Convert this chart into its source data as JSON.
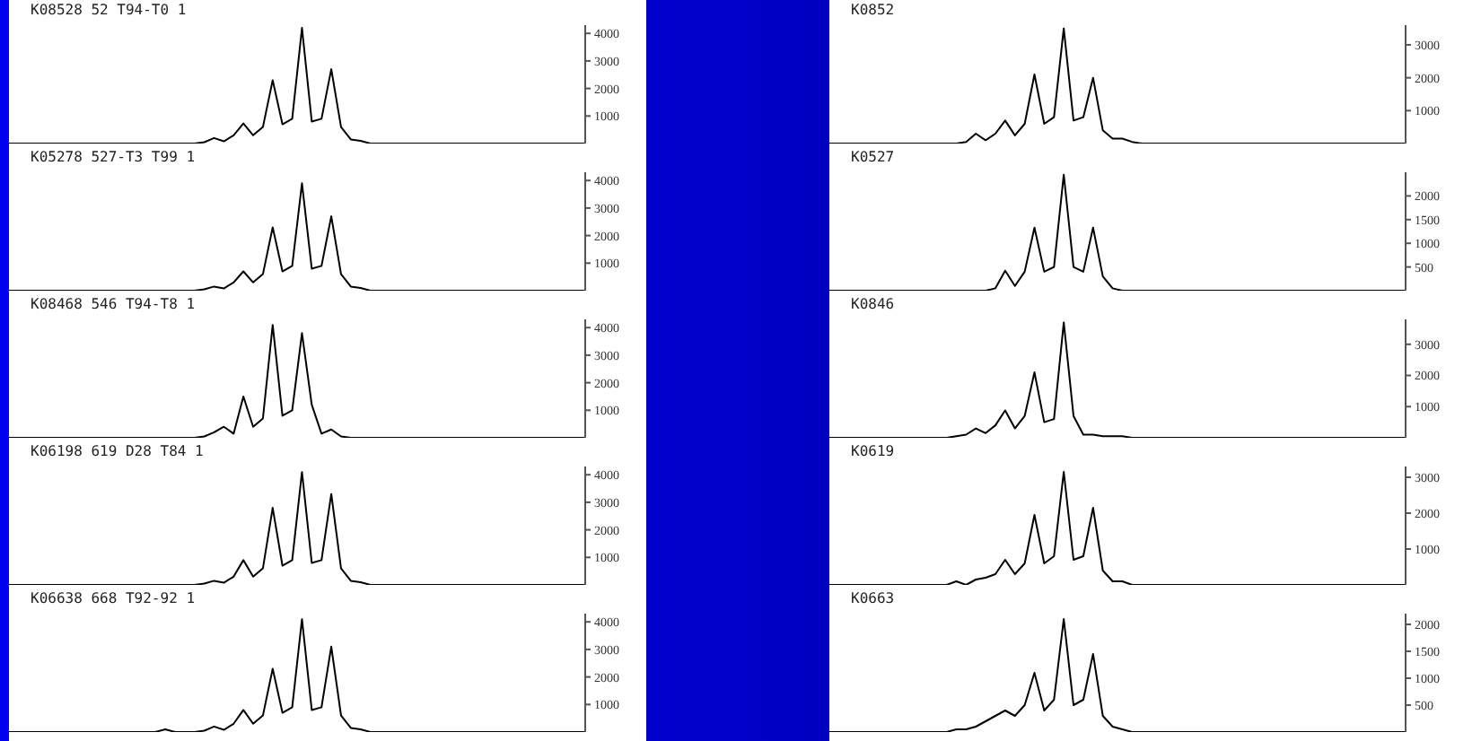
{
  "chart_data": [
    {
      "type": "line",
      "title": "K08528 52 T94-T0 1",
      "categories": [
        null,
        null,
        null,
        null,
        null,
        null,
        null,
        null,
        null,
        null,
        null,
        null,
        null,
        null,
        null,
        null,
        null,
        null,
        null,
        null,
        null,
        null,
        null,
        null,
        null,
        null,
        null,
        null,
        null,
        null,
        null,
        null,
        null,
        null,
        null,
        null,
        null,
        null,
        null,
        null,
        null,
        null,
        null,
        null,
        null,
        null,
        null,
        null,
        null,
        null,
        null,
        null,
        null,
        null,
        null,
        null,
        null,
        null,
        null,
        null
      ],
      "series": [
        {
          "color": "#000000",
          "values": [
            0,
            0,
            0,
            0,
            0,
            0,
            0,
            0,
            0,
            0,
            0,
            0,
            0,
            0,
            0,
            0,
            0,
            0,
            0,
            0,
            50,
            200,
            80,
            300,
            730,
            300,
            600,
            2300,
            700,
            900,
            4200,
            800,
            900,
            2700,
            600,
            150,
            100,
            0,
            0,
            0,
            0,
            0,
            0,
            0,
            0,
            0,
            0,
            0,
            0,
            0,
            0,
            0,
            0,
            0,
            0,
            0,
            0,
            0,
            0,
            0
          ]
        }
      ],
      "ylim": [
        0,
        4300
      ],
      "yticks": [
        1000,
        2000,
        3000,
        4000
      ],
      "tick_labels": "y",
      "grid": false,
      "legend": false,
      "marker": "none"
    },
    {
      "type": "line",
      "title": "K05278 527-T3 T99 1",
      "categories": [
        null,
        null,
        null,
        null,
        null,
        null,
        null,
        null,
        null,
        null,
        null,
        null,
        null,
        null,
        null,
        null,
        null,
        null,
        null,
        null,
        null,
        null,
        null,
        null,
        null,
        null,
        null,
        null,
        null,
        null,
        null,
        null,
        null,
        null,
        null,
        null,
        null,
        null,
        null,
        null,
        null,
        null,
        null,
        null,
        null,
        null,
        null,
        null,
        null,
        null,
        null,
        null,
        null,
        null,
        null,
        null,
        null,
        null,
        null,
        null
      ],
      "series": [
        {
          "color": "#000000",
          "values": [
            0,
            0,
            0,
            0,
            0,
            0,
            0,
            0,
            0,
            0,
            0,
            0,
            0,
            0,
            0,
            0,
            0,
            0,
            0,
            0,
            50,
            150,
            80,
            300,
            700,
            300,
            600,
            2300,
            700,
            900,
            3900,
            800,
            900,
            2700,
            600,
            150,
            100,
            0,
            0,
            0,
            0,
            0,
            0,
            0,
            0,
            0,
            0,
            0,
            0,
            0,
            0,
            0,
            0,
            0,
            0,
            0,
            0,
            0,
            0,
            0
          ]
        }
      ],
      "ylim": [
        0,
        4300
      ],
      "yticks": [
        1000,
        2000,
        3000,
        4000
      ],
      "tick_labels": "y",
      "grid": false,
      "legend": false,
      "marker": "none"
    },
    {
      "type": "line",
      "title": "K08468 546 T94-T8 1",
      "categories": [
        null,
        null,
        null,
        null,
        null,
        null,
        null,
        null,
        null,
        null,
        null,
        null,
        null,
        null,
        null,
        null,
        null,
        null,
        null,
        null,
        null,
        null,
        null,
        null,
        null,
        null,
        null,
        null,
        null,
        null,
        null,
        null,
        null,
        null,
        null,
        null,
        null,
        null,
        null,
        null,
        null,
        null,
        null,
        null,
        null,
        null,
        null,
        null,
        null,
        null,
        null,
        null,
        null,
        null,
        null,
        null,
        null,
        null,
        null,
        null
      ],
      "series": [
        {
          "color": "#000000",
          "values": [
            0,
            0,
            0,
            0,
            0,
            0,
            0,
            0,
            0,
            0,
            0,
            0,
            0,
            0,
            0,
            0,
            0,
            0,
            0,
            0,
            50,
            200,
            400,
            150,
            1500,
            400,
            700,
            4100,
            800,
            1000,
            3800,
            1200,
            150,
            300,
            50,
            0,
            0,
            0,
            0,
            0,
            0,
            0,
            0,
            0,
            0,
            0,
            0,
            0,
            0,
            0,
            0,
            0,
            0,
            0,
            0,
            0,
            0,
            0,
            0,
            0
          ]
        }
      ],
      "ylim": [
        0,
        4300
      ],
      "yticks": [
        1000,
        2000,
        3000,
        4000
      ],
      "tick_labels": "y",
      "grid": false,
      "legend": false,
      "marker": "none"
    },
    {
      "type": "line",
      "title": "K06198 619 D28 T84 1",
      "categories": [
        null,
        null,
        null,
        null,
        null,
        null,
        null,
        null,
        null,
        null,
        null,
        null,
        null,
        null,
        null,
        null,
        null,
        null,
        null,
        null,
        null,
        null,
        null,
        null,
        null,
        null,
        null,
        null,
        null,
        null,
        null,
        null,
        null,
        null,
        null,
        null,
        null,
        null,
        null,
        null,
        null,
        null,
        null,
        null,
        null,
        null,
        null,
        null,
        null,
        null,
        null,
        null,
        null,
        null,
        null,
        null,
        null,
        null,
        null,
        null
      ],
      "series": [
        {
          "color": "#000000",
          "values": [
            0,
            0,
            0,
            0,
            0,
            0,
            0,
            0,
            0,
            0,
            0,
            0,
            0,
            0,
            0,
            0,
            0,
            0,
            0,
            0,
            50,
            150,
            80,
            300,
            900,
            300,
            600,
            2800,
            700,
            900,
            4100,
            800,
            900,
            3300,
            600,
            150,
            100,
            0,
            0,
            0,
            0,
            0,
            0,
            0,
            0,
            0,
            0,
            0,
            0,
            0,
            0,
            0,
            0,
            0,
            0,
            0,
            0,
            0,
            0,
            0
          ]
        }
      ],
      "ylim": [
        0,
        4300
      ],
      "yticks": [
        1000,
        2000,
        3000,
        4000
      ],
      "tick_labels": "y",
      "grid": false,
      "legend": false,
      "marker": "none"
    },
    {
      "type": "line",
      "title": "K06638 668 T92-92 1",
      "categories": [
        null,
        null,
        null,
        null,
        null,
        null,
        null,
        null,
        null,
        null,
        null,
        null,
        null,
        null,
        null,
        null,
        null,
        null,
        null,
        null,
        null,
        null,
        null,
        null,
        null,
        null,
        null,
        null,
        null,
        null,
        null,
        null,
        null,
        null,
        null,
        null,
        null,
        null,
        null,
        null,
        null,
        null,
        null,
        null,
        null,
        null,
        null,
        null,
        null,
        null,
        null,
        null,
        null,
        null,
        null,
        null,
        null,
        null,
        null,
        null
      ],
      "series": [
        {
          "color": "#000000",
          "values": [
            0,
            0,
            0,
            0,
            0,
            0,
            0,
            0,
            0,
            0,
            0,
            0,
            0,
            0,
            0,
            0,
            100,
            0,
            0,
            0,
            50,
            200,
            80,
            300,
            800,
            300,
            600,
            2300,
            700,
            900,
            4100,
            800,
            900,
            3100,
            600,
            150,
            100,
            0,
            0,
            0,
            0,
            0,
            0,
            0,
            0,
            0,
            0,
            0,
            0,
            0,
            0,
            0,
            0,
            0,
            0,
            0,
            0,
            0,
            0,
            0
          ]
        }
      ],
      "ylim": [
        0,
        4300
      ],
      "yticks": [
        1000,
        2000,
        3000,
        4000
      ],
      "tick_labels": "y",
      "grid": false,
      "legend": false,
      "marker": "none"
    },
    {
      "type": "line",
      "title": "K0852",
      "categories": [
        null,
        null,
        null,
        null,
        null,
        null,
        null,
        null,
        null,
        null,
        null,
        null,
        null,
        null,
        null,
        null,
        null,
        null,
        null,
        null,
        null,
        null,
        null,
        null,
        null,
        null,
        null,
        null,
        null,
        null,
        null,
        null,
        null,
        null,
        null,
        null,
        null,
        null,
        null,
        null,
        null,
        null,
        null,
        null,
        null,
        null,
        null,
        null,
        null,
        null,
        null,
        null,
        null,
        null,
        null,
        null,
        null,
        null,
        null,
        null
      ],
      "series": [
        {
          "color": "#000000",
          "values": [
            0,
            0,
            0,
            0,
            0,
            0,
            0,
            0,
            0,
            0,
            0,
            0,
            0,
            0,
            50,
            300,
            100,
            300,
            700,
            250,
            600,
            2100,
            600,
            800,
            3500,
            700,
            800,
            2000,
            400,
            150,
            150,
            50,
            0,
            0,
            0,
            0,
            0,
            0,
            0,
            0,
            0,
            0,
            0,
            0,
            0,
            0,
            0,
            0,
            0,
            0,
            0,
            0,
            0,
            0,
            0,
            0,
            0,
            0,
            0,
            0
          ]
        }
      ],
      "ylim": [
        0,
        3600
      ],
      "yticks": [
        1000,
        2000,
        3000
      ],
      "tick_labels": "y",
      "grid": false,
      "legend": false,
      "marker": "none"
    },
    {
      "type": "line",
      "title": "K0527",
      "categories": [
        null,
        null,
        null,
        null,
        null,
        null,
        null,
        null,
        null,
        null,
        null,
        null,
        null,
        null,
        null,
        null,
        null,
        null,
        null,
        null,
        null,
        null,
        null,
        null,
        null,
        null,
        null,
        null,
        null,
        null,
        null,
        null,
        null,
        null,
        null,
        null,
        null,
        null,
        null,
        null,
        null,
        null,
        null,
        null,
        null,
        null,
        null,
        null,
        null,
        null,
        null,
        null,
        null,
        null,
        null,
        null,
        null,
        null,
        null,
        null
      ],
      "series": [
        {
          "color": "#000000",
          "values": [
            0,
            0,
            0,
            0,
            0,
            0,
            0,
            0,
            0,
            0,
            0,
            0,
            0,
            0,
            0,
            0,
            0,
            50,
            420,
            100,
            400,
            1330,
            400,
            500,
            2450,
            500,
            400,
            1330,
            300,
            50,
            0,
            0,
            0,
            0,
            0,
            0,
            0,
            0,
            0,
            0,
            0,
            0,
            0,
            0,
            0,
            0,
            0,
            0,
            0,
            0,
            0,
            0,
            0,
            0,
            0,
            0,
            0,
            0,
            0,
            0
          ]
        }
      ],
      "ylim": [
        0,
        2500
      ],
      "yticks": [
        500,
        1000,
        1500,
        2000
      ],
      "tick_labels": "y",
      "grid": false,
      "legend": false,
      "marker": "none"
    },
    {
      "type": "line",
      "title": "K0846",
      "categories": [
        null,
        null,
        null,
        null,
        null,
        null,
        null,
        null,
        null,
        null,
        null,
        null,
        null,
        null,
        null,
        null,
        null,
        null,
        null,
        null,
        null,
        null,
        null,
        null,
        null,
        null,
        null,
        null,
        null,
        null,
        null,
        null,
        null,
        null,
        null,
        null,
        null,
        null,
        null,
        null,
        null,
        null,
        null,
        null,
        null,
        null,
        null,
        null,
        null,
        null,
        null,
        null,
        null,
        null,
        null,
        null,
        null,
        null,
        null,
        null
      ],
      "series": [
        {
          "color": "#000000",
          "values": [
            0,
            0,
            0,
            0,
            0,
            0,
            0,
            0,
            0,
            0,
            0,
            0,
            0,
            50,
            100,
            300,
            150,
            400,
            880,
            300,
            700,
            2100,
            500,
            600,
            3700,
            700,
            100,
            100,
            50,
            50,
            50,
            0,
            0,
            0,
            0,
            0,
            0,
            0,
            0,
            0,
            0,
            0,
            0,
            0,
            0,
            0,
            0,
            0,
            0,
            0,
            0,
            0,
            0,
            0,
            0,
            0,
            0,
            0,
            0,
            0
          ]
        }
      ],
      "ylim": [
        0,
        3800
      ],
      "yticks": [
        1000,
        2000,
        3000
      ],
      "tick_labels": "y",
      "grid": false,
      "legend": false,
      "marker": "none"
    },
    {
      "type": "line",
      "title": "K0619",
      "categories": [
        null,
        null,
        null,
        null,
        null,
        null,
        null,
        null,
        null,
        null,
        null,
        null,
        null,
        null,
        null,
        null,
        null,
        null,
        null,
        null,
        null,
        null,
        null,
        null,
        null,
        null,
        null,
        null,
        null,
        null,
        null,
        null,
        null,
        null,
        null,
        null,
        null,
        null,
        null,
        null,
        null,
        null,
        null,
        null,
        null,
        null,
        null,
        null,
        null,
        null,
        null,
        null,
        null,
        null,
        null,
        null,
        null,
        null,
        null,
        null
      ],
      "series": [
        {
          "color": "#000000",
          "values": [
            0,
            0,
            0,
            0,
            0,
            0,
            0,
            0,
            0,
            0,
            0,
            0,
            0,
            100,
            0,
            150,
            200,
            300,
            700,
            300,
            600,
            1950,
            600,
            800,
            3150,
            700,
            800,
            2150,
            400,
            100,
            100,
            0,
            0,
            0,
            0,
            0,
            0,
            0,
            0,
            0,
            0,
            0,
            0,
            0,
            0,
            0,
            0,
            0,
            0,
            0,
            0,
            0,
            0,
            0,
            0,
            0,
            0,
            0,
            0,
            0
          ]
        }
      ],
      "ylim": [
        0,
        3300
      ],
      "yticks": [
        1000,
        2000,
        3000
      ],
      "tick_labels": "y",
      "grid": false,
      "legend": false,
      "marker": "none"
    },
    {
      "type": "line",
      "title": "K0663",
      "categories": [
        null,
        null,
        null,
        null,
        null,
        null,
        null,
        null,
        null,
        null,
        null,
        null,
        null,
        null,
        null,
        null,
        null,
        null,
        null,
        null,
        null,
        null,
        null,
        null,
        null,
        null,
        null,
        null,
        null,
        null,
        null,
        null,
        null,
        null,
        null,
        null,
        null,
        null,
        null,
        null,
        null,
        null,
        null,
        null,
        null,
        null,
        null,
        null,
        null,
        null,
        null,
        null,
        null,
        null,
        null,
        null,
        null,
        null,
        null,
        null
      ],
      "series": [
        {
          "color": "#000000",
          "values": [
            0,
            0,
            0,
            0,
            0,
            0,
            0,
            0,
            0,
            0,
            0,
            0,
            0,
            50,
            50,
            100,
            200,
            300,
            400,
            300,
            500,
            1100,
            400,
            600,
            2100,
            500,
            600,
            1450,
            300,
            100,
            50,
            0,
            0,
            0,
            0,
            0,
            0,
            0,
            0,
            0,
            0,
            0,
            0,
            0,
            0,
            0,
            0,
            0,
            0,
            0,
            0,
            0,
            0,
            0,
            0,
            0,
            0,
            0,
            0,
            0
          ]
        }
      ],
      "ylim": [
        0,
        2200
      ],
      "yticks": [
        500,
        1000,
        1500,
        2000
      ],
      "tick_labels": "y",
      "grid": false,
      "legend": false,
      "marker": "none"
    }
  ]
}
